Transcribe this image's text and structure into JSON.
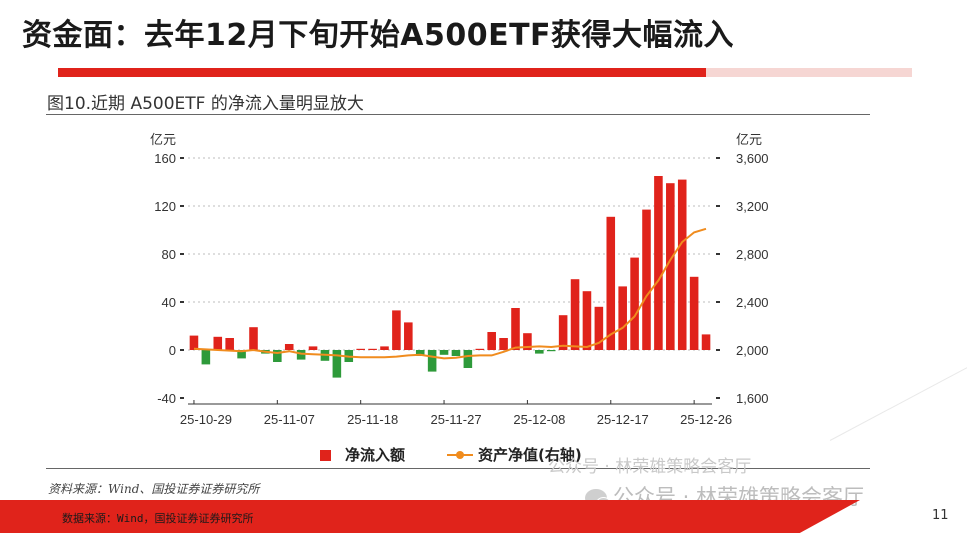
{
  "slide": {
    "title": "资金面：去年12月下旬开始A500ETF获得大幅流入",
    "figure_title": "图10.近期 A500ETF 的净流入量明显放大",
    "source_note": "资料来源：Wind、国投证券证券研究所",
    "footer_source": "数据来源：Wind，国投证券证券研究所",
    "page_number": "11",
    "watermark_small": "公众号 · 林荣雄策略会客厅",
    "watermark_large": "公众号 · 林荣雄策略会客厅"
  },
  "colors": {
    "accent": "#e0231b",
    "accent_light": "#f6d6d3",
    "bar_positive": "#e0231b",
    "bar_negative": "#2e9a3a",
    "line": "#f08c1e"
  },
  "chart_data": {
    "type": "bar",
    "title": "图10.近期 A500ETF 的净流入量明显放大",
    "ylabel": "亿元",
    "y2label": "亿元",
    "ylim": [
      -40,
      160
    ],
    "yticks": [
      "160",
      "120",
      "80",
      "40",
      "0",
      "-40"
    ],
    "y2lim": [
      1600,
      3600
    ],
    "y2ticks": [
      "3,600",
      "3,200",
      "2,800",
      "2,400",
      "2,000",
      "1,600"
    ],
    "x_tick_labels": [
      "25-10-29",
      "25-11-07",
      "25-11-18",
      "25-11-27",
      "25-12-08",
      "25-12-17",
      "25-12-26"
    ],
    "x_tick_indices": [
      0,
      7,
      14,
      21,
      28,
      35,
      42
    ],
    "grid": true,
    "legend_position": "bottom",
    "series": [
      {
        "name": "净流入额",
        "type": "bar",
        "axis": "left",
        "values": [
          12,
          -12,
          11,
          10,
          -7,
          19,
          -3,
          -10,
          5,
          -8,
          3,
          -9,
          -23,
          -10,
          1,
          1,
          3,
          33,
          23,
          -5,
          -18,
          -4,
          -5,
          -15,
          1,
          15,
          10,
          35,
          14,
          -3,
          -1,
          29,
          59,
          49,
          36,
          111,
          53,
          77,
          117,
          145,
          139,
          142,
          61,
          13
        ],
        "colors_by_sign": true
      },
      {
        "name": "资产净值(右轴)",
        "type": "line",
        "axis": "right",
        "values": [
          2010,
          2005,
          2000,
          1995,
          1990,
          2000,
          1985,
          1975,
          1990,
          1970,
          1965,
          1960,
          1955,
          1945,
          1940,
          1940,
          1940,
          1945,
          1955,
          1960,
          1945,
          1930,
          1935,
          1950,
          1955,
          1955,
          1985,
          2020,
          2025,
          2030,
          2025,
          2035,
          2030,
          2025,
          2060,
          2130,
          2185,
          2280,
          2450,
          2580,
          2750,
          2900,
          2980,
          3010
        ]
      }
    ]
  }
}
